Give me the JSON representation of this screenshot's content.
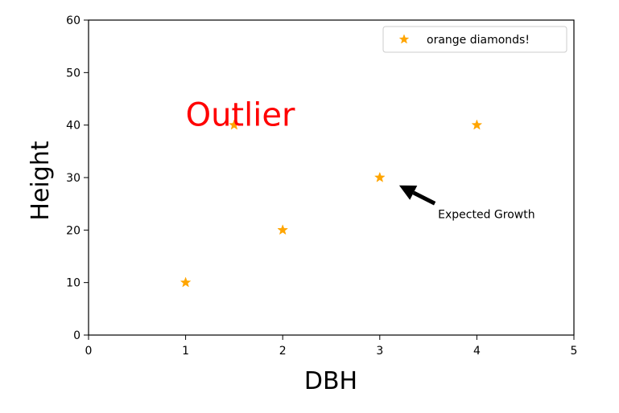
{
  "chart_data": {
    "type": "scatter",
    "xlabel": "DBH",
    "ylabel": "Height",
    "xlim": [
      0,
      5
    ],
    "ylim": [
      0,
      60
    ],
    "xticks": [
      0,
      1,
      2,
      3,
      4,
      5
    ],
    "yticks": [
      0,
      10,
      20,
      30,
      40,
      50,
      60
    ],
    "grid": false,
    "legend_position": "top-right",
    "series": [
      {
        "name": "orange diamonds!",
        "marker": "star",
        "color": "#FFA500",
        "x": [
          1,
          1.5,
          2,
          3,
          4
        ],
        "y": [
          10,
          40,
          20,
          30,
          40
        ]
      }
    ],
    "annotations": [
      {
        "text": "Outlier",
        "x": 1,
        "y": 42,
        "color": "#FF0000"
      },
      {
        "text": "Expected Growth",
        "x": 3.6,
        "y": 22,
        "arrow_to_x": 3.2,
        "arrow_to_y": 28.5,
        "color": "#000000"
      }
    ]
  }
}
